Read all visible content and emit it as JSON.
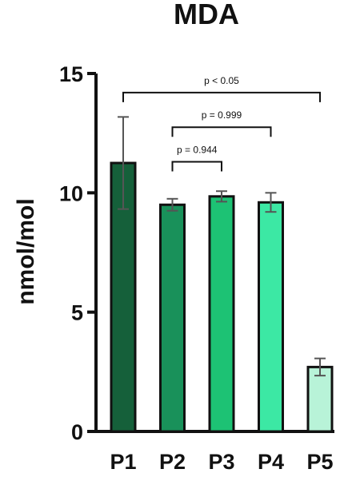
{
  "chart_data": {
    "type": "bar",
    "title": "MDA",
    "ylabel": "nmol/mol",
    "xlabel": "",
    "ylim": [
      0,
      15
    ],
    "yticks": [
      0,
      5,
      10,
      15
    ],
    "categories": [
      "P1",
      "P2",
      "P3",
      "P4",
      "P5"
    ],
    "values": [
      11.25,
      9.5,
      9.85,
      9.6,
      2.7
    ],
    "errors": [
      1.93,
      0.25,
      0.22,
      0.4,
      0.36
    ],
    "colors": [
      "#15603a",
      "#19915a",
      "#1dc274",
      "#3ce8a4",
      "#b8f3d8"
    ],
    "grid": false,
    "comparisons": [
      {
        "from": 0,
        "to": 4,
        "label": "p < 0.05",
        "y": 14.2
      },
      {
        "from": 1,
        "to": 3,
        "label": "p = 0.999",
        "y": 12.75
      },
      {
        "from": 1,
        "to": 2,
        "label": "p = 0.944",
        "y": 11.3
      }
    ]
  }
}
